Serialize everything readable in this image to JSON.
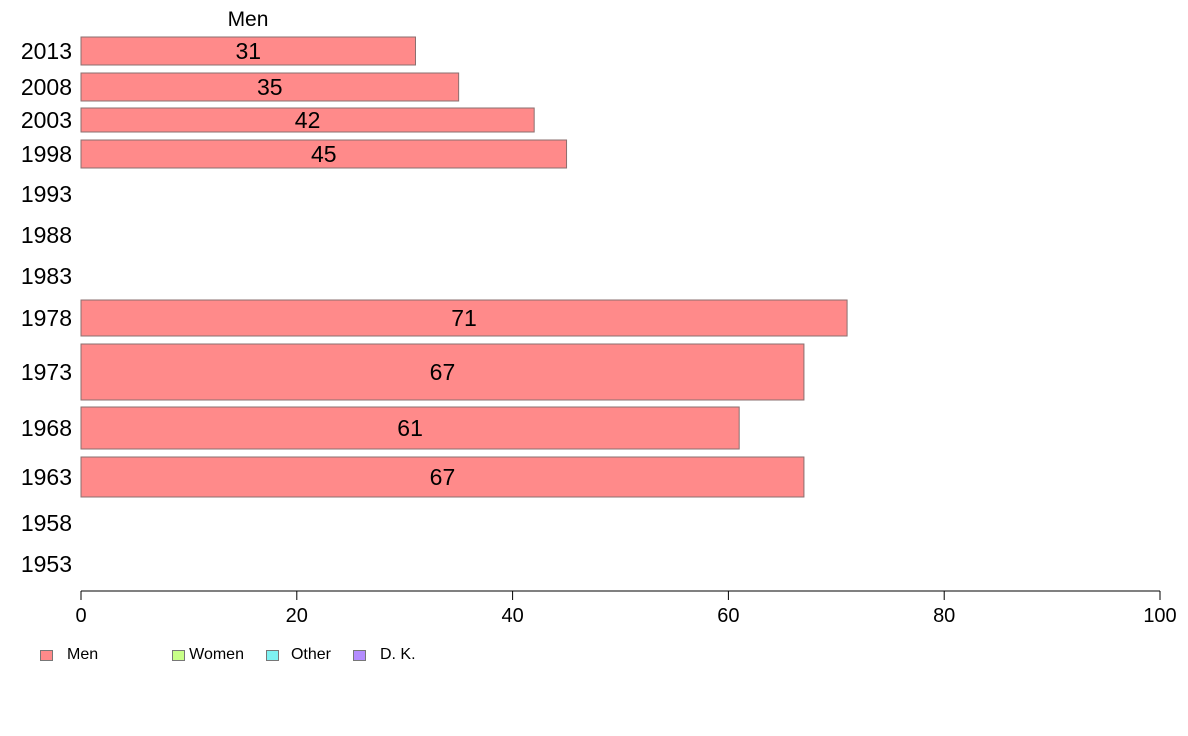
{
  "chart_data": {
    "type": "bar",
    "orientation": "horizontal",
    "title": "Men",
    "categories": [
      "2013",
      "2008",
      "2003",
      "1998",
      "1993",
      "1988",
      "1983",
      "1978",
      "1973",
      "1968",
      "1963",
      "1958",
      "1953"
    ],
    "series": [
      {
        "name": "Men",
        "color": "#ff8a8a",
        "values": [
          31,
          35,
          42,
          45,
          null,
          null,
          null,
          71,
          67,
          61,
          67,
          null,
          null
        ]
      }
    ],
    "xlim": [
      0,
      100
    ],
    "xticks": [
      0,
      20,
      40,
      60,
      80,
      100
    ],
    "grid": false,
    "legend": {
      "placement": "bottom-left",
      "items": [
        {
          "label": "Men",
          "color": "#ff8a8a"
        },
        {
          "label": "Women",
          "color": "#c8ff88"
        },
        {
          "label": "Other",
          "color": "#7ef2f2"
        },
        {
          "label": "D. K.",
          "color": "#b48cff"
        }
      ]
    }
  }
}
